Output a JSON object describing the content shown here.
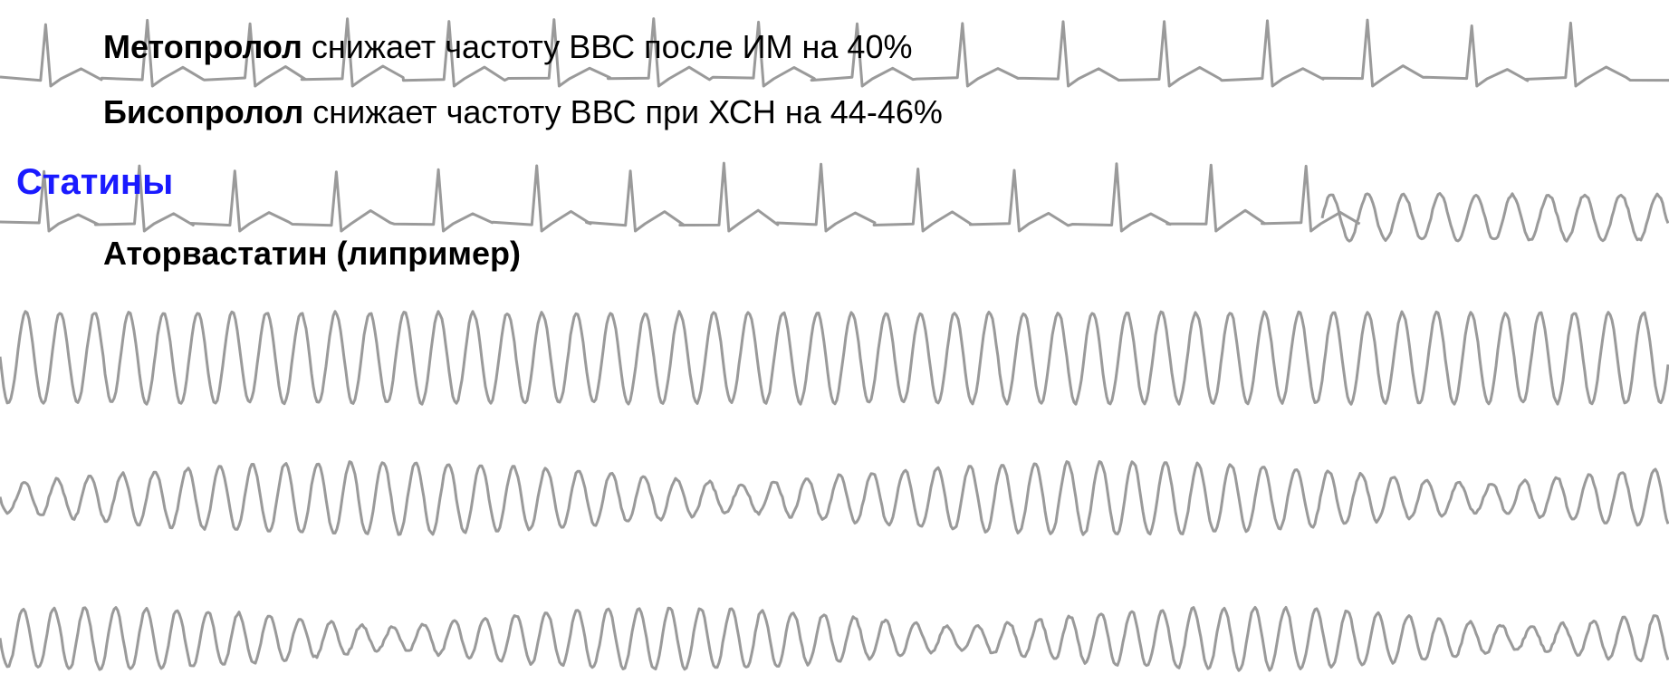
{
  "section1": {
    "items": [
      {
        "drug": "Метопролол",
        "text": "снижает частоту ВВС после ИМ на 40%"
      },
      {
        "drug": "Бисопролол",
        "text": "снижает частоту ВВС при ХСН на 44-46%"
      }
    ]
  },
  "section2": {
    "heading": "Статины",
    "items": [
      {
        "drug": "Аторвастатин (липример)"
      }
    ]
  }
}
